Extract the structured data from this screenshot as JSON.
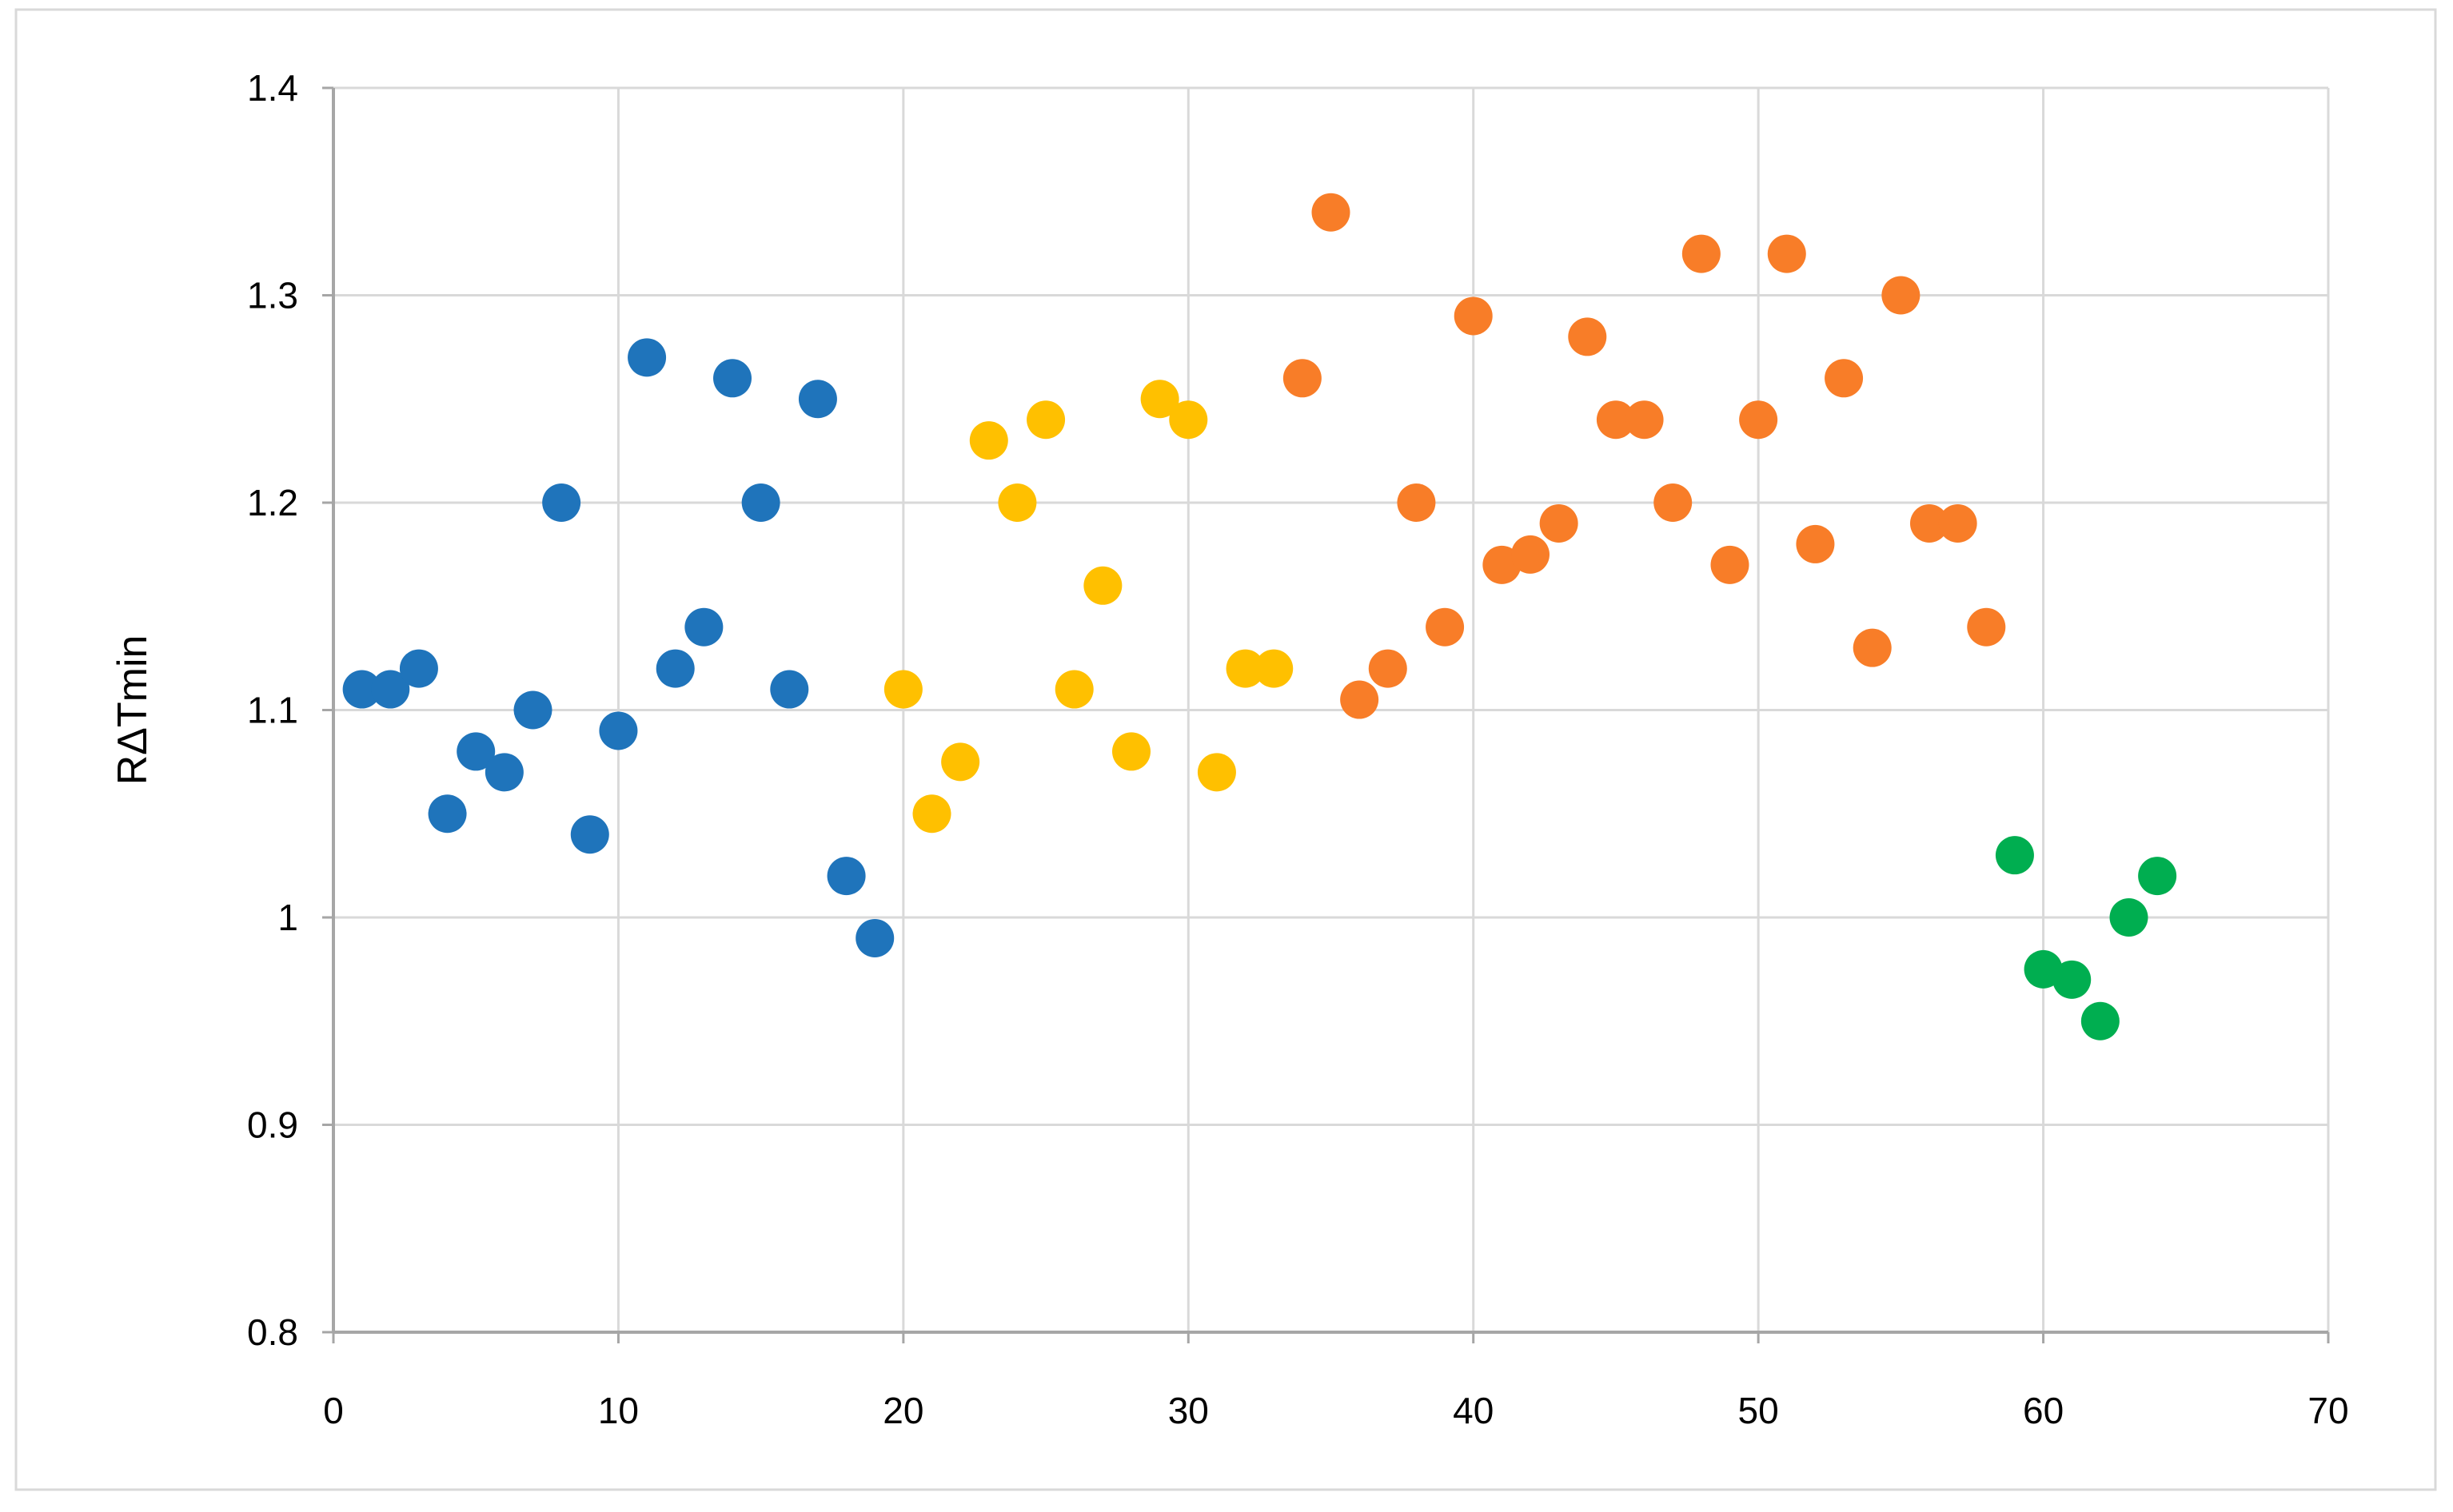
{
  "figure": {
    "background": "#FFFFFF",
    "border_color": "#D9D9D9",
    "gridline_color": "#D9D9D9",
    "axis_color": "#A6A6A6"
  },
  "chart_data": {
    "type": "scatter",
    "title": "",
    "xlabel": "",
    "ylabel": "RΔTmin",
    "xlim": [
      0,
      70
    ],
    "ylim": [
      0.8,
      1.4
    ],
    "x_ticks": [
      0,
      10,
      20,
      30,
      40,
      50,
      60,
      70
    ],
    "x_tick_labels": [
      "0",
      "10",
      "20",
      "30",
      "40",
      "50",
      "60",
      "70"
    ],
    "y_ticks": [
      1.4,
      1.3,
      1.2,
      1.1,
      1.0,
      0.9,
      0.8
    ],
    "y_tick_labels": [
      "1.4",
      "1.3",
      "1.2",
      "1.1",
      "1",
      "0.9",
      "0.8"
    ],
    "grid": true,
    "legend_position": "none",
    "marker": "circle",
    "series": [
      {
        "name": "series-blue",
        "color": "#1F74BB",
        "points": [
          [
            1,
            1.11
          ],
          [
            2,
            1.11
          ],
          [
            3,
            1.12
          ],
          [
            4,
            1.05
          ],
          [
            5,
            1.08
          ],
          [
            6,
            1.07
          ],
          [
            7,
            1.1
          ],
          [
            8,
            1.2
          ],
          [
            9,
            1.04
          ],
          [
            10,
            1.09
          ],
          [
            11,
            1.27
          ],
          [
            12,
            1.12
          ],
          [
            13,
            1.14
          ],
          [
            14,
            1.26
          ],
          [
            15,
            1.2
          ],
          [
            16,
            1.11
          ],
          [
            17,
            1.25
          ],
          [
            18,
            1.02
          ],
          [
            19,
            0.99
          ]
        ]
      },
      {
        "name": "series-yellow",
        "color": "#FFC000",
        "points": [
          [
            20,
            1.11
          ],
          [
            21,
            1.05
          ],
          [
            22,
            1.075
          ],
          [
            23,
            1.23
          ],
          [
            24,
            1.2
          ],
          [
            25,
            1.24
          ],
          [
            26,
            1.11
          ],
          [
            27,
            1.16
          ],
          [
            28,
            1.08
          ],
          [
            29,
            1.25
          ],
          [
            30,
            1.24
          ],
          [
            31,
            1.07
          ],
          [
            32,
            1.12
          ],
          [
            33,
            1.12
          ]
        ]
      },
      {
        "name": "series-orange",
        "color": "#F87D28",
        "points": [
          [
            34,
            1.26
          ],
          [
            35,
            1.34
          ],
          [
            36,
            1.105
          ],
          [
            37,
            1.12
          ],
          [
            38,
            1.2
          ],
          [
            39,
            1.14
          ],
          [
            40,
            1.29
          ],
          [
            41,
            1.17
          ],
          [
            42,
            1.175
          ],
          [
            43,
            1.19
          ],
          [
            44,
            1.28
          ],
          [
            45,
            1.24
          ],
          [
            46,
            1.24
          ],
          [
            47,
            1.2
          ],
          [
            48,
            1.32
          ],
          [
            49,
            1.17
          ],
          [
            50,
            1.24
          ],
          [
            51,
            1.32
          ],
          [
            52,
            1.18
          ],
          [
            53,
            1.26
          ],
          [
            54,
            1.13
          ],
          [
            55,
            1.3
          ],
          [
            56,
            1.19
          ],
          [
            57,
            1.19
          ],
          [
            58,
            1.14
          ]
        ]
      },
      {
        "name": "series-green",
        "color": "#00AE50",
        "points": [
          [
            59,
            1.03
          ],
          [
            60,
            0.975
          ],
          [
            61,
            0.97
          ],
          [
            62,
            0.95
          ],
          [
            63,
            1.0
          ],
          [
            64,
            1.02
          ]
        ]
      }
    ]
  }
}
